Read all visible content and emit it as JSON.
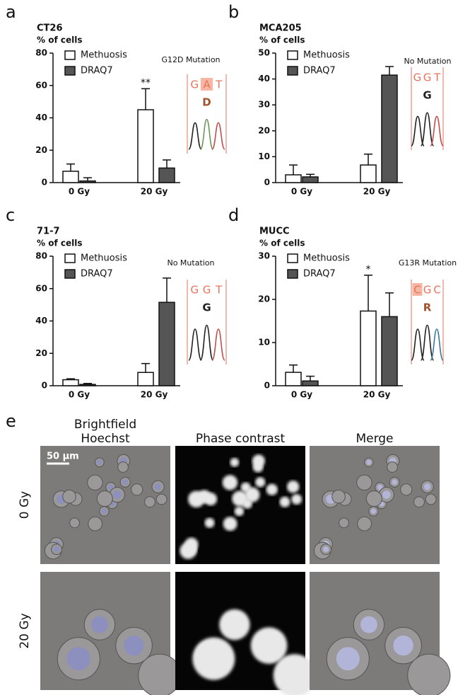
{
  "chart_data": [
    {
      "type": "bar",
      "panel": "a",
      "title": "CT26",
      "y_label": "% of cells",
      "categories": [
        "0 Gy",
        "20 Gy"
      ],
      "series": [
        {
          "name": "Methuosis",
          "color": "#ffffff",
          "values": [
            7,
            45
          ],
          "errors": [
            4.5,
            13
          ]
        },
        {
          "name": "DRAQ7",
          "color": "#555555",
          "values": [
            1,
            9
          ],
          "errors": [
            2,
            5
          ]
        }
      ],
      "ylim": [
        0,
        80
      ],
      "yticks": [
        0,
        20,
        40,
        60,
        80
      ],
      "annotations": [
        {
          "text": "**",
          "series": 0,
          "category": 1
        }
      ],
      "inset": {
        "label": "G12D Mutation",
        "sequence": [
          "G",
          "A",
          "T"
        ],
        "amino_acid": "D",
        "highlight": 1
      }
    },
    {
      "type": "bar",
      "panel": "b",
      "title": "MCA205",
      "y_label": "% of cells",
      "categories": [
        "0 Gy",
        "20 Gy"
      ],
      "series": [
        {
          "name": "Methuosis",
          "color": "#ffffff",
          "values": [
            3,
            6.8
          ],
          "errors": [
            3.8,
            4.2
          ]
        },
        {
          "name": "DRAQ7",
          "color": "#555555",
          "values": [
            2.2,
            41.5
          ],
          "errors": [
            1,
            3.3
          ]
        }
      ],
      "ylim": [
        0,
        50
      ],
      "yticks": [
        0,
        10,
        20,
        30,
        40,
        50
      ],
      "annotations": [],
      "inset": {
        "label": "No Mutation",
        "sequence": [
          "G",
          "G",
          "T"
        ],
        "amino_acid": "G",
        "highlight": null
      }
    },
    {
      "type": "bar",
      "panel": "c",
      "title": "71-7",
      "y_label": "% of cells",
      "categories": [
        "0 Gy",
        "20 Gy"
      ],
      "series": [
        {
          "name": "Methuosis",
          "color": "#ffffff",
          "values": [
            3.7,
            8.2
          ],
          "errors": [
            0.6,
            5.5
          ]
        },
        {
          "name": "DRAQ7",
          "color": "#555555",
          "values": [
            0.8,
            51.5
          ],
          "errors": [
            0.6,
            15
          ]
        }
      ],
      "ylim": [
        0,
        80
      ],
      "yticks": [
        0,
        20,
        40,
        60,
        80
      ],
      "annotations": [],
      "inset": {
        "label": "No Mutation",
        "sequence": [
          "G",
          "G",
          "T"
        ],
        "amino_acid": "G",
        "highlight": null
      }
    },
    {
      "type": "bar",
      "panel": "d",
      "title": "MUCC",
      "y_label": "% of cells",
      "categories": [
        "0 Gy",
        "20 Gy"
      ],
      "series": [
        {
          "name": "Methuosis",
          "color": "#ffffff",
          "values": [
            3.1,
            17.3
          ],
          "errors": [
            1.7,
            8.3
          ]
        },
        {
          "name": "DRAQ7",
          "color": "#555555",
          "values": [
            1.1,
            16
          ],
          "errors": [
            1.1,
            5.5
          ]
        }
      ],
      "ylim": [
        0,
        30
      ],
      "yticks": [
        0,
        10,
        20,
        30
      ],
      "annotations": [
        {
          "text": "*",
          "series": 0,
          "category": 1
        }
      ],
      "inset": {
        "label": "G13R Mutation",
        "sequence": [
          "C",
          "G",
          "C"
        ],
        "amino_acid": "R",
        "highlight": 0
      }
    }
  ],
  "image_panel": {
    "panel": "e",
    "columns": [
      [
        "Brightfield",
        "Hoechst"
      ],
      [
        "Phase contrast"
      ],
      [
        "Merge"
      ]
    ],
    "rows": [
      "0 Gy",
      "20 Gy"
    ],
    "scale_bar": "50 µm"
  }
}
